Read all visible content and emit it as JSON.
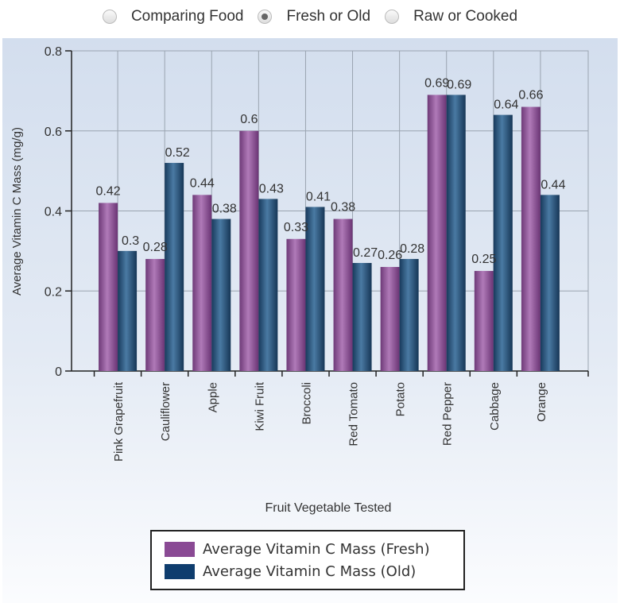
{
  "radios": [
    {
      "label": "Comparing Food",
      "selected": false
    },
    {
      "label": "Fresh or Old",
      "selected": true
    },
    {
      "label": "Raw or Cooked",
      "selected": false
    }
  ],
  "chart_data": {
    "type": "bar",
    "title": "",
    "xlabel": "Fruit Vegetable Tested",
    "ylabel": "Average Vitamin C Mass (mg/g)",
    "ylim": [
      0,
      0.8
    ],
    "yticks": [
      "0",
      "0.2",
      "0.4",
      "0.6",
      "0.8"
    ],
    "grid": true,
    "legend_position": "bottom",
    "categories": [
      "Pink Grapefruit",
      "Cauliflower",
      "Apple",
      "Kiwi Fruit",
      "Broccoli",
      "Red Tomato",
      "Potato",
      "Red Pepper",
      "Cabbage",
      "Orange"
    ],
    "series": [
      {
        "name": "Average Vitamin C Mass (Fresh)",
        "color": "#8a4a94",
        "values": [
          0.42,
          0.28,
          0.44,
          0.6,
          0.33,
          0.38,
          0.26,
          0.69,
          0.25,
          0.66
        ]
      },
      {
        "name": "Average Vitamin C Mass (Old)",
        "color": "#1f4a73",
        "values": [
          0.3,
          0.52,
          0.38,
          0.43,
          0.41,
          0.27,
          0.28,
          0.69,
          0.64,
          0.44
        ]
      }
    ]
  }
}
